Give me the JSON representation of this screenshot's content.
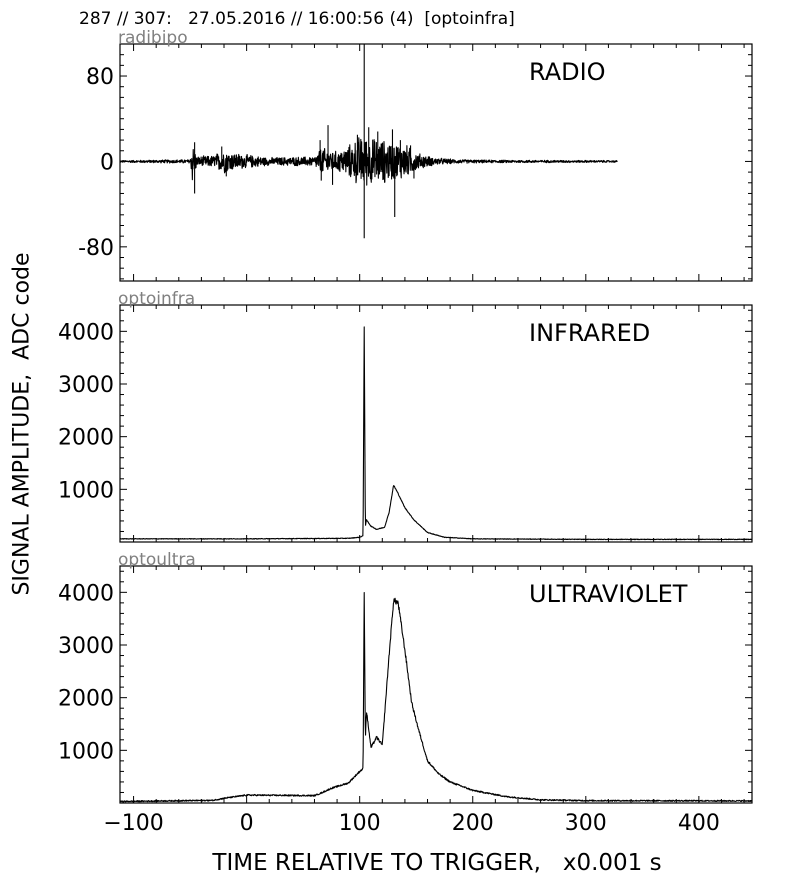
{
  "header": {
    "title": "287 // 307:   27.05.2016 // 16:00:56 (4)  [optoinfra]"
  },
  "chart_data": {
    "type": "line",
    "xlabel": "TIME RELATIVE TO TRIGGER,   x0.001 s",
    "ylabel": "SIGNAL AMPLITUDE,  ADC code",
    "xlim": [
      -112,
      447
    ],
    "xticks": [
      -100,
      0,
      100,
      200,
      300,
      400
    ],
    "xtick_labels": [
      "−100",
      "0",
      "100",
      "200",
      "300",
      "400"
    ],
    "grid": false,
    "line_color": "#000000",
    "tag_color": "#808080",
    "panels": [
      {
        "tag": "radibipo",
        "title": "RADIO",
        "ylim": [
          -112,
          110
        ],
        "yticks": [
          80,
          0,
          -80
        ],
        "ytick_labels": [
          "80",
          "0",
          "-80"
        ],
        "series": {
          "kind": "oscillation",
          "x_end": 328,
          "envelope": [
            [
              -112,
              1
            ],
            [
              -50,
              2
            ],
            [
              -48,
              22
            ],
            [
              -44,
              5
            ],
            [
              -30,
              6
            ],
            [
              -20,
              12
            ],
            [
              -12,
              9
            ],
            [
              0,
              7
            ],
            [
              20,
              4
            ],
            [
              60,
              5
            ],
            [
              66,
              14
            ],
            [
              80,
              10
            ],
            [
              90,
              16
            ],
            [
              100,
              26
            ],
            [
              110,
              24
            ],
            [
              120,
              22
            ],
            [
              130,
              20
            ],
            [
              140,
              18
            ],
            [
              150,
              9
            ],
            [
              165,
              4
            ],
            [
              185,
              2
            ],
            [
              210,
              1.5
            ],
            [
              328,
              1
            ]
          ],
          "spikes": [
            [
              -46,
              18
            ],
            [
              -46,
              -30
            ],
            [
              -22,
              14
            ],
            [
              -18,
              -14
            ],
            [
              65,
              20
            ],
            [
              66,
              -18
            ],
            [
              72,
              34
            ],
            [
              76,
              -22
            ],
            [
              98,
              25
            ],
            [
              104,
              110
            ],
            [
              104,
              -72
            ],
            [
              108,
              32
            ],
            [
              116,
              28
            ],
            [
              122,
              -20
            ],
            [
              129,
              30
            ],
            [
              131,
              -52
            ],
            [
              136,
              20
            ],
            [
              145,
              15
            ],
            [
              148,
              -16
            ]
          ]
        }
      },
      {
        "tag": "optoinfra",
        "title": "INFRARED",
        "ylim": [
          0,
          4500
        ],
        "yticks": [
          1000,
          2000,
          3000,
          4000
        ],
        "ytick_labels": [
          "1000",
          "2000",
          "3000",
          "4000"
        ],
        "series": {
          "kind": "profile",
          "noise": 20,
          "points": [
            [
              -112,
              60
            ],
            [
              0,
              60
            ],
            [
              90,
              70
            ],
            [
              100,
              90
            ],
            [
              103,
              120
            ],
            [
              104,
              4100
            ],
            [
              105,
              300
            ],
            [
              106,
              420
            ],
            [
              110,
              300
            ],
            [
              115,
              240
            ],
            [
              122,
              280
            ],
            [
              126,
              560
            ],
            [
              130,
              1080
            ],
            [
              134,
              920
            ],
            [
              140,
              650
            ],
            [
              148,
              420
            ],
            [
              160,
              180
            ],
            [
              175,
              90
            ],
            [
              200,
              60
            ],
            [
              300,
              50
            ],
            [
              447,
              50
            ]
          ]
        }
      },
      {
        "tag": "optoultra",
        "title": "ULTRAVIOLET",
        "ylim": [
          0,
          4500
        ],
        "yticks": [
          1000,
          2000,
          3000,
          4000
        ],
        "ytick_labels": [
          "1000",
          "2000",
          "3000",
          "4000"
        ],
        "series": {
          "kind": "profile",
          "noise": 45,
          "points": [
            [
              -112,
              30
            ],
            [
              -30,
              50
            ],
            [
              -20,
              90
            ],
            [
              0,
              150
            ],
            [
              60,
              140
            ],
            [
              66,
              190
            ],
            [
              75,
              280
            ],
            [
              90,
              380
            ],
            [
              100,
              600
            ],
            [
              103,
              650
            ],
            [
              104,
              4050
            ],
            [
              105,
              1200
            ],
            [
              106,
              1750
            ],
            [
              110,
              1050
            ],
            [
              115,
              1250
            ],
            [
              120,
              1100
            ],
            [
              126,
              2800
            ],
            [
              130,
              3850
            ],
            [
              134,
              3800
            ],
            [
              140,
              2900
            ],
            [
              146,
              1900
            ],
            [
              152,
              1400
            ],
            [
              160,
              800
            ],
            [
              170,
              550
            ],
            [
              180,
              400
            ],
            [
              200,
              240
            ],
            [
              230,
              120
            ],
            [
              260,
              60
            ],
            [
              300,
              45
            ],
            [
              447,
              40
            ]
          ]
        }
      }
    ]
  }
}
